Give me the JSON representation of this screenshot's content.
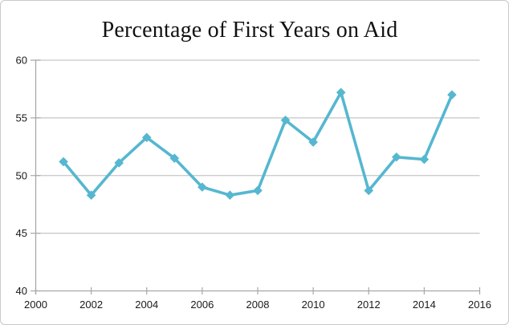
{
  "chart_data": {
    "type": "line",
    "title": "Percentage of First Years on Aid",
    "xlabel": "",
    "ylabel": "",
    "x": [
      2001,
      2002,
      2003,
      2004,
      2005,
      2006,
      2007,
      2008,
      2009,
      2010,
      2011,
      2012,
      2013,
      2014,
      2015
    ],
    "values": [
      51.2,
      48.3,
      51.1,
      53.3,
      51.5,
      49.0,
      48.3,
      48.7,
      54.8,
      52.9,
      57.2,
      48.7,
      51.6,
      51.4,
      57.0
    ],
    "xlim": [
      2000,
      2016
    ],
    "ylim": [
      40,
      60
    ],
    "x_ticks": [
      2000,
      2002,
      2004,
      2006,
      2008,
      2010,
      2012,
      2014,
      2016
    ],
    "y_ticks": [
      40,
      45,
      50,
      55,
      60
    ],
    "grid": "horizontal",
    "legend_position": "none",
    "marker": "diamond",
    "colors": {
      "line": "#55b7d0",
      "grid": "#c6c6c6",
      "axis": "#a8a8a8",
      "text": "#1a1a1a",
      "title": "#111111",
      "background": "#ffffff",
      "frame_border": "#c9c9c9"
    }
  }
}
